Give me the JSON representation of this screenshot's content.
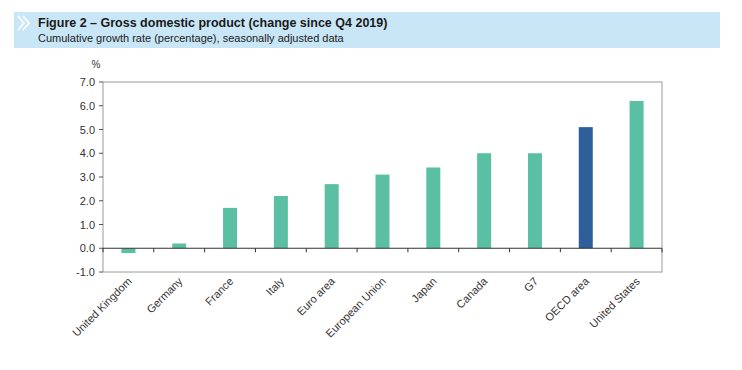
{
  "chart_data": {
    "type": "bar",
    "title": "Figure 2 – Gross domestic product (change since Q4 2019)",
    "subtitle": "Cumulative growth rate (percentage), seasonally adjusted data",
    "ylabel": "%",
    "categories": [
      "United Kingdom",
      "Germany",
      "France",
      "Italy",
      "Euro area",
      "European Union",
      "Japan",
      "Canada",
      "G7",
      "OECD area",
      "United States"
    ],
    "values": [
      -0.2,
      0.2,
      1.7,
      2.2,
      2.7,
      3.1,
      3.4,
      4.0,
      4.0,
      5.1,
      6.2
    ],
    "colors": [
      "#5bbfa3",
      "#5bbfa3",
      "#5bbfa3",
      "#5bbfa3",
      "#5bbfa3",
      "#5bbfa3",
      "#5bbfa3",
      "#5bbfa3",
      "#5bbfa3",
      "#2e5f9a",
      "#5bbfa3"
    ],
    "ylim": [
      -1,
      7
    ],
    "yticks": [
      {
        "value": -1,
        "label": "-1.0"
      },
      {
        "value": 0,
        "label": "0.0"
      },
      {
        "value": 1,
        "label": "1.0"
      },
      {
        "value": 2,
        "label": "2.0"
      },
      {
        "value": 3,
        "label": "3.0"
      },
      {
        "value": 4,
        "label": "4.0"
      },
      {
        "value": 5,
        "label": "5.0"
      },
      {
        "value": 6,
        "label": "6.0"
      },
      {
        "value": 7,
        "label": "7.0"
      }
    ],
    "grid": false
  }
}
